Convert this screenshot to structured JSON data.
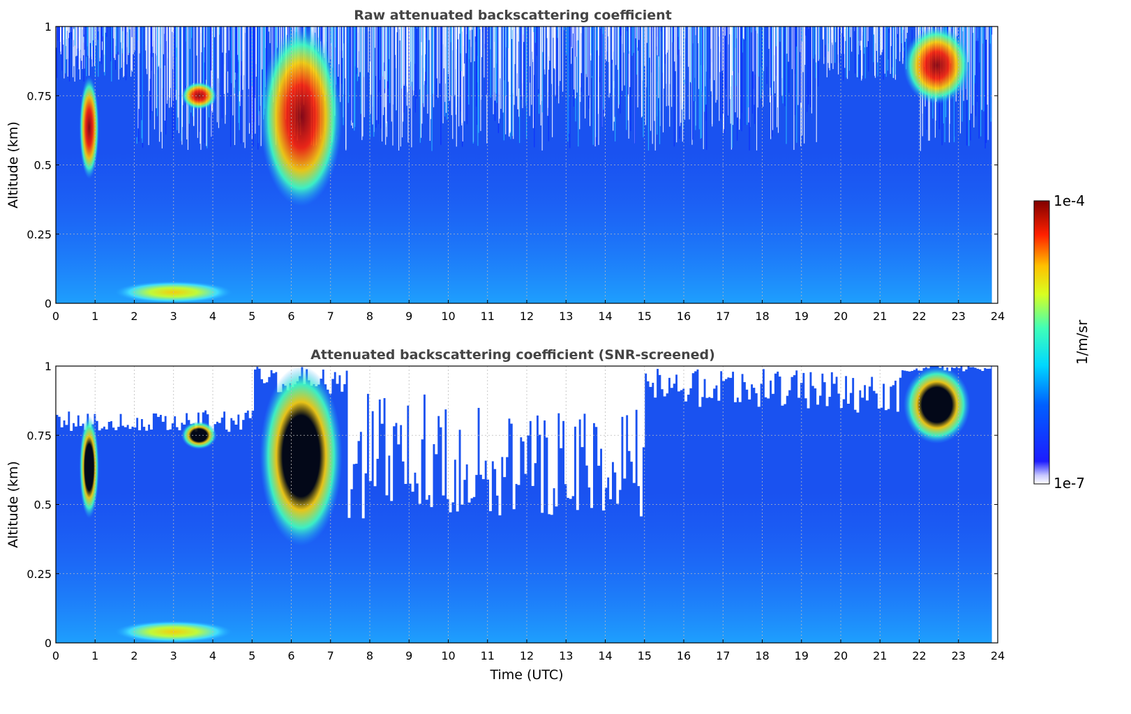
{
  "chart_data": [
    {
      "type": "heatmap",
      "title": "Raw attenuated backscattering coefficient",
      "xlabel": "",
      "ylabel": "Altitude (km)",
      "xlim": [
        0,
        24
      ],
      "ylim": [
        0,
        1
      ],
      "xticks": [
        "0",
        "1",
        "2",
        "3",
        "4",
        "5",
        "6",
        "7",
        "8",
        "9",
        "10",
        "11",
        "12",
        "13",
        "14",
        "15",
        "16",
        "17",
        "18",
        "19",
        "20",
        "21",
        "22",
        "23",
        "24"
      ],
      "yticks": [
        "0",
        "0.25",
        "0.5",
        "0.75",
        "1"
      ],
      "grid": true,
      "screened": false,
      "data_end_time": 23.85,
      "features": [
        {
          "kind": "cloud",
          "time": [
            0.6,
            1.1
          ],
          "altitude": [
            0.45,
            0.82
          ],
          "level": "high"
        },
        {
          "kind": "cloud",
          "time": [
            3.2,
            4.1
          ],
          "altitude": [
            0.7,
            0.8
          ],
          "level": "high"
        },
        {
          "kind": "cloud",
          "time": [
            5.2,
            7.3
          ],
          "altitude": [
            0.35,
            1.0
          ],
          "level": "high"
        },
        {
          "kind": "cloud",
          "time": [
            21.6,
            23.3
          ],
          "altitude": [
            0.72,
            1.0
          ],
          "level": "high"
        },
        {
          "kind": "aerosol",
          "time": [
            1.5,
            4.5
          ],
          "altitude": [
            0.0,
            0.08
          ],
          "level": "medium"
        }
      ]
    },
    {
      "type": "heatmap",
      "title": "Attenuated backscattering coefficient (SNR-screened)",
      "xlabel": "Time (UTC)",
      "ylabel": "Altitude (km)",
      "xlim": [
        0,
        24
      ],
      "ylim": [
        0,
        1
      ],
      "xticks": [
        "0",
        "1",
        "2",
        "3",
        "4",
        "5",
        "6",
        "7",
        "8",
        "9",
        "10",
        "11",
        "12",
        "13",
        "14",
        "15",
        "16",
        "17",
        "18",
        "19",
        "20",
        "21",
        "22",
        "23",
        "24"
      ],
      "yticks": [
        "0",
        "0.25",
        "0.5",
        "0.75",
        "1"
      ],
      "grid": true,
      "screened": true,
      "data_end_time": 23.85,
      "features": [
        {
          "kind": "cloud",
          "time": [
            0.6,
            1.1
          ],
          "altitude": [
            0.45,
            0.82
          ],
          "level": "saturated"
        },
        {
          "kind": "cloud",
          "time": [
            3.2,
            4.1
          ],
          "altitude": [
            0.7,
            0.8
          ],
          "level": "saturated"
        },
        {
          "kind": "cloud",
          "time": [
            5.2,
            7.3
          ],
          "altitude": [
            0.35,
            1.0
          ],
          "level": "saturated"
        },
        {
          "kind": "cloud",
          "time": [
            21.6,
            23.3
          ],
          "altitude": [
            0.72,
            1.0
          ],
          "level": "saturated"
        },
        {
          "kind": "aerosol",
          "time": [
            1.5,
            4.5
          ],
          "altitude": [
            0.0,
            0.08
          ],
          "level": "medium"
        }
      ]
    }
  ],
  "colorbar": {
    "label": "1/m/sr",
    "max_label": "1e-4",
    "min_label": "1e-7",
    "colormap": "jet",
    "scale": "log",
    "range": [
      1e-07,
      0.0001
    ]
  },
  "colors": {
    "background_signal": "#1a52f0",
    "boundary_layer": "#1fa0ff",
    "screened_out": "#ffffff",
    "saturated": "#000000"
  }
}
